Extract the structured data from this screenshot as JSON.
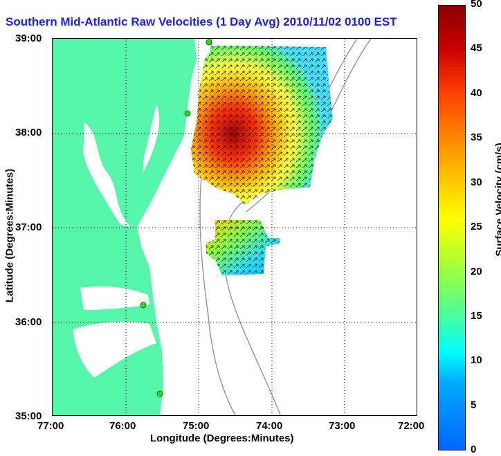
{
  "title": "Southern Mid-Atlantic Raw Velocities (1 Day Avg) 2010/11/02 0100 EST",
  "axes": {
    "xlabel": "Longitude (Degrees:Minutes)",
    "ylabel": "Latitude (Degrees:Minutes)",
    "xticks": [
      "77:00",
      "76:00",
      "75:00",
      "74:00",
      "73:00",
      "72:00"
    ],
    "yticks": [
      "39:00",
      "38:00",
      "37:00",
      "36:00",
      "35:00"
    ]
  },
  "colorbar": {
    "label": "Surface Velocity (cm/s)",
    "ticks": [
      "50",
      "45",
      "40",
      "35",
      "30",
      "25",
      "20",
      "15",
      "10",
      "5",
      "0"
    ],
    "range": [
      0,
      50
    ],
    "colors": [
      "#0000ff",
      "#00aaff",
      "#00ffff",
      "#55ff55",
      "#ffff00",
      "#ffaa00",
      "#ff3300",
      "#8b0000"
    ]
  },
  "map": {
    "land_color": "#55f5aa",
    "station_color": "#22dd22"
  }
}
